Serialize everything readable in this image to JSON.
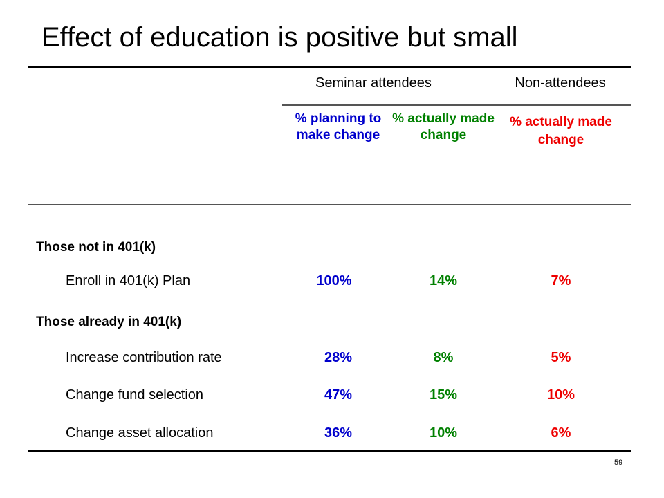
{
  "slide": {
    "title": "Effect of education is positive but small",
    "page_number": "59"
  },
  "colors": {
    "planning": "#0000cc",
    "attendee_actual": "#008000",
    "non_attendee_actual": "#ee0000",
    "text": "#000000"
  },
  "table": {
    "group_headers": {
      "attendees": "Seminar attendees",
      "non_attendees": "Non-attendees"
    },
    "column_headers": {
      "planning": "% planning to make change",
      "attendee_actual": "% actually made change",
      "non_attendee_actual": "% actually made change"
    },
    "sections": [
      {
        "label": "Those not in 401(k)",
        "rows": [
          {
            "label": "Enroll in 401(k) Plan",
            "planning": "100%",
            "attendee_actual": "14%",
            "non_attendee_actual": "7%"
          }
        ]
      },
      {
        "label": "Those already in 401(k)",
        "rows": [
          {
            "label": "Increase contribution rate",
            "planning": "28%",
            "attendee_actual": "8%",
            "non_attendee_actual": "5%"
          },
          {
            "label": "Change fund selection",
            "planning": "47%",
            "attendee_actual": "15%",
            "non_attendee_actual": "10%"
          },
          {
            "label": "Change asset allocation",
            "planning": "36%",
            "attendee_actual": "10%",
            "non_attendee_actual": "6%"
          }
        ]
      }
    ]
  }
}
